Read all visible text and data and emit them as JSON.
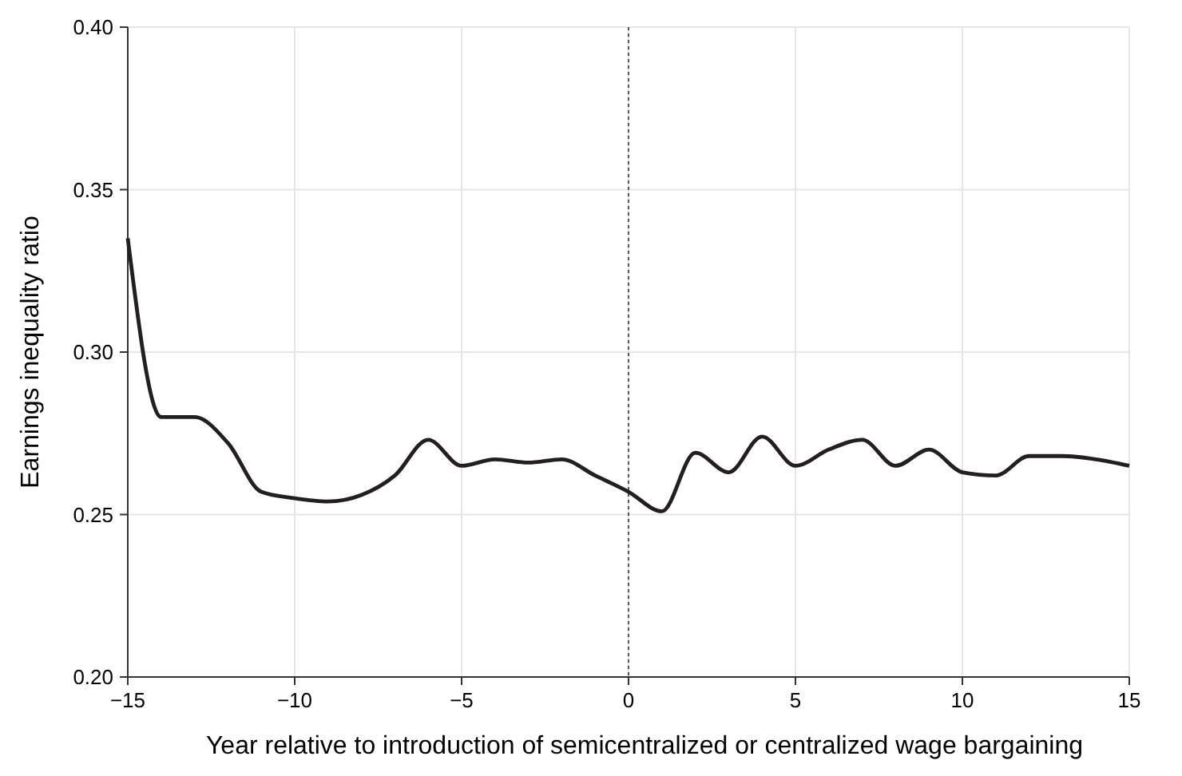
{
  "chart_data": {
    "type": "line",
    "xlabel": "Year relative to introduction of semicentralized or centralized wage bargaining",
    "ylabel": "Earnings inequality ratio",
    "x": [
      -15,
      -14,
      -13,
      -12,
      -11,
      -10,
      -9,
      -8,
      -7,
      -6,
      -5,
      -4,
      -3,
      -2,
      -1,
      0,
      1,
      2,
      3,
      4,
      5,
      6,
      7,
      8,
      9,
      10,
      11,
      12,
      13,
      14,
      15
    ],
    "series": [
      {
        "color": "#231f20",
        "values": [
          0.335,
          0.28,
          0.28,
          0.272,
          0.257,
          0.255,
          0.254,
          0.256,
          0.262,
          0.273,
          0.265,
          0.267,
          0.266,
          0.267,
          0.262,
          0.257,
          0.251,
          0.269,
          0.263,
          0.274,
          0.265,
          0.27,
          0.273,
          0.265,
          0.27,
          0.263,
          0.262,
          0.268,
          0.268,
          0.267,
          0.265
        ]
      }
    ],
    "xlim": [
      -15,
      15
    ],
    "ylim": [
      0.2,
      0.4
    ],
    "xticks": [
      {
        "value": -15,
        "label": "−15"
      },
      {
        "value": -10,
        "label": "−10"
      },
      {
        "value": -5,
        "label": "−5"
      },
      0,
      5,
      10,
      15
    ],
    "yticks": [
      {
        "value": 0.2,
        "label": "0.20"
      },
      {
        "value": 0.25,
        "label": "0.25"
      },
      {
        "value": 0.3,
        "label": "0.30"
      },
      {
        "value": 0.35,
        "label": "0.35"
      },
      {
        "value": 0.4,
        "label": "0.40"
      }
    ],
    "grid": true,
    "marker": "none",
    "line_style": "solid",
    "ref_lines": [
      {
        "axis": "x",
        "value": 0,
        "line_style": "dotted",
        "color": "#555555"
      }
    ]
  }
}
